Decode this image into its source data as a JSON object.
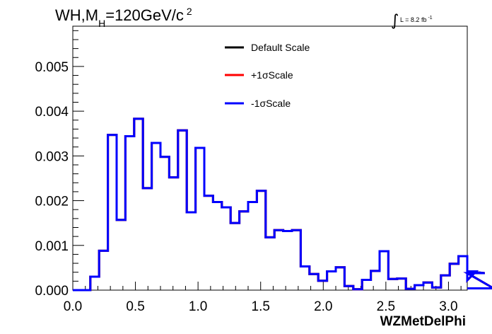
{
  "title": {
    "prefix": "WH,M",
    "subscript": "H",
    "suffix": "=120GeV/c",
    "superscript": "2"
  },
  "luminosity": {
    "integral_symbol": "∫",
    "text": "L = 8.2 fb",
    "superscript": "-1"
  },
  "chart_data": {
    "type": "line",
    "style": "step-histogram",
    "xlabel": "WZMetDelPhi",
    "ylabel": "",
    "xlim": [
      0.0,
      3.15
    ],
    "ylim": [
      0.0,
      0.0059
    ],
    "x_ticks": [
      "0.0",
      "0.5",
      "1.0",
      "1.5",
      "2.0",
      "2.5",
      "3.0"
    ],
    "y_ticks": [
      "0.000",
      "0.001",
      "0.002",
      "0.003",
      "0.004",
      "0.005"
    ],
    "grid": false,
    "legend_position": "top-center",
    "bin_width": 0.07,
    "bin_start": 0.0,
    "series": [
      {
        "name": "Default Scale",
        "color": "#000000",
        "values": [
          0.0,
          0.0,
          0.0003,
          0.00088,
          0.00347,
          0.00157,
          0.00344,
          0.00383,
          0.00228,
          0.00329,
          0.00298,
          0.00252,
          0.00357,
          0.00174,
          0.00318,
          0.00211,
          0.00197,
          0.00185,
          0.0015,
          0.00176,
          0.00197,
          0.00222,
          0.00118,
          0.00134,
          0.00132,
          0.00134,
          0.00053,
          0.00036,
          0.00021,
          0.00042,
          0.00051,
          9e-05,
          2e-05,
          0.00023,
          0.00043,
          0.00087,
          0.00025,
          0.00026,
          3e-05,
          0.00011,
          0.00017,
          6e-05,
          0.00033,
          0.00059,
          0.00076,
          0.00022,
          0.00042,
          0.00038,
          4e-05
        ]
      },
      {
        "name": "+1σScale",
        "color": "#ff0000",
        "values": [
          0.0,
          0.0,
          0.0003,
          0.00088,
          0.00347,
          0.00157,
          0.00344,
          0.00383,
          0.00228,
          0.00329,
          0.00298,
          0.00252,
          0.00357,
          0.00174,
          0.00318,
          0.00211,
          0.00197,
          0.00185,
          0.0015,
          0.00176,
          0.00197,
          0.00222,
          0.00118,
          0.00134,
          0.00132,
          0.00134,
          0.00053,
          0.00036,
          0.00021,
          0.00042,
          0.00051,
          9e-05,
          2e-05,
          0.00023,
          0.00043,
          0.00087,
          0.00025,
          0.00026,
          3e-05,
          0.00011,
          0.00017,
          6e-05,
          0.00033,
          0.00059,
          0.00076,
          0.00022,
          0.00042,
          0.00038,
          4e-05
        ]
      },
      {
        "name": "-1σScale",
        "color": "#0000ff",
        "values": [
          0.0,
          0.0,
          0.0003,
          0.00088,
          0.00347,
          0.00157,
          0.00344,
          0.00383,
          0.00228,
          0.00329,
          0.00298,
          0.00252,
          0.00357,
          0.00174,
          0.00318,
          0.00211,
          0.00197,
          0.00185,
          0.0015,
          0.00176,
          0.00197,
          0.00222,
          0.00118,
          0.00134,
          0.00132,
          0.00134,
          0.00053,
          0.00036,
          0.00021,
          0.00042,
          0.00051,
          9e-05,
          2e-05,
          0.00023,
          0.00043,
          0.00087,
          0.00025,
          0.00026,
          3e-05,
          0.00011,
          0.00017,
          6e-05,
          0.00033,
          0.00059,
          0.00076,
          0.00022,
          0.00042,
          0.00038,
          4e-05
        ]
      }
    ]
  }
}
